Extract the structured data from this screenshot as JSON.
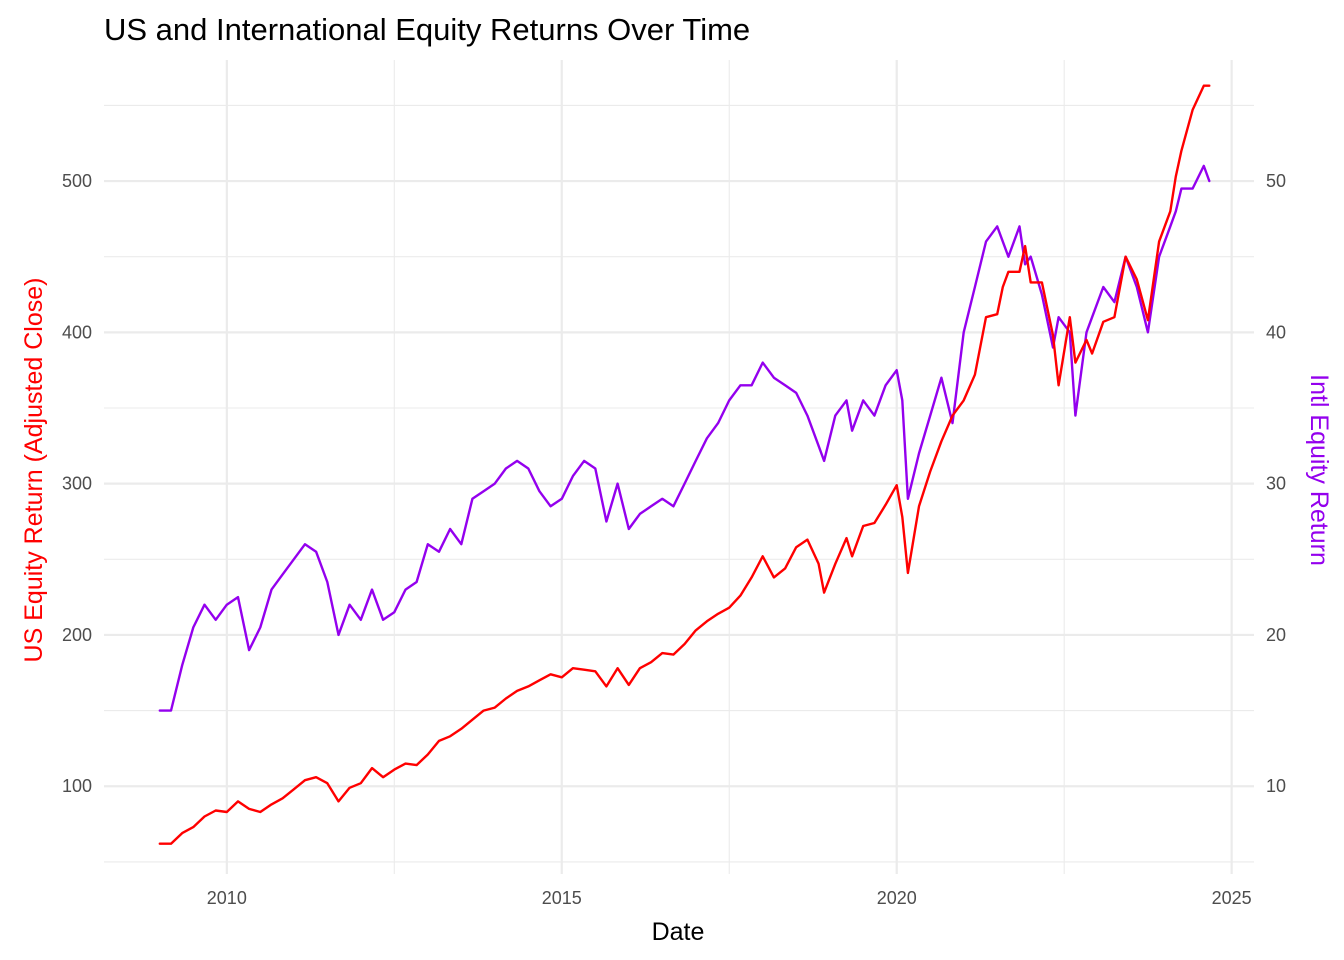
{
  "chart_data": {
    "type": "line",
    "title": "US and International Equity Returns Over Time",
    "xlabel": "Date",
    "ylabel": "US Equity Return (Adjusted Close)",
    "y2label": "Intl Equity Return",
    "xlim": [
      "2008-03-01",
      "2025-05-01"
    ],
    "x_ticks": [
      "2010",
      "2015",
      "2020",
      "2025"
    ],
    "ylim": [
      42,
      580
    ],
    "y_ticks": [
      "100",
      "200",
      "300",
      "400",
      "500"
    ],
    "y2lim": [
      4.2,
      58
    ],
    "y2_ticks": [
      "10",
      "20",
      "30",
      "40",
      "50"
    ],
    "grid": true,
    "colors": {
      "us": "#ff0000",
      "intl": "#9400ee"
    },
    "series": [
      {
        "axis": "left",
        "color": "#ff0000",
        "x": [
          "2009-01",
          "2009-03",
          "2009-05",
          "2009-07",
          "2009-09",
          "2009-11",
          "2010-01",
          "2010-03",
          "2010-05",
          "2010-07",
          "2010-09",
          "2010-11",
          "2011-01",
          "2011-03",
          "2011-05",
          "2011-07",
          "2011-09",
          "2011-11",
          "2012-01",
          "2012-03",
          "2012-05",
          "2012-07",
          "2012-09",
          "2012-11",
          "2013-01",
          "2013-03",
          "2013-05",
          "2013-07",
          "2013-09",
          "2013-11",
          "2014-01",
          "2014-03",
          "2014-05",
          "2014-07",
          "2014-09",
          "2014-11",
          "2015-01",
          "2015-03",
          "2015-05",
          "2015-07",
          "2015-09",
          "2015-11",
          "2016-01",
          "2016-03",
          "2016-05",
          "2016-07",
          "2016-09",
          "2016-11",
          "2017-01",
          "2017-03",
          "2017-05",
          "2017-07",
          "2017-09",
          "2017-11",
          "2018-01",
          "2018-03",
          "2018-05",
          "2018-07",
          "2018-09",
          "2018-11",
          "2018-12",
          "2019-02",
          "2019-04",
          "2019-05",
          "2019-07",
          "2019-09",
          "2019-11",
          "2020-01",
          "2020-02",
          "2020-03",
          "2020-05",
          "2020-07",
          "2020-09",
          "2020-11",
          "2021-01",
          "2021-03",
          "2021-05",
          "2021-07",
          "2021-08",
          "2021-09",
          "2021-11",
          "2021-12",
          "2022-01",
          "2022-03",
          "2022-05",
          "2022-06",
          "2022-08",
          "2022-09",
          "2022-11",
          "2022-12",
          "2023-02",
          "2023-04",
          "2023-06",
          "2023-08",
          "2023-10",
          "2023-12",
          "2024-02",
          "2024-03",
          "2024-04",
          "2024-06",
          "2024-08",
          "2024-09"
        ],
        "values": [
          62,
          62,
          69,
          73,
          80,
          84,
          83,
          90,
          85,
          83,
          88,
          92,
          98,
          104,
          106,
          102,
          90,
          99,
          102,
          112,
          106,
          111,
          115,
          114,
          121,
          130,
          133,
          138,
          144,
          150,
          152,
          158,
          163,
          166,
          170,
          174,
          172,
          178,
          177,
          176,
          166,
          178,
          167,
          178,
          182,
          188,
          187,
          194,
          203,
          209,
          214,
          218,
          226,
          238,
          252,
          238,
          244,
          258,
          263,
          247,
          228,
          247,
          264,
          252,
          272,
          274,
          286,
          299,
          278,
          241,
          285,
          308,
          328,
          345,
          355,
          372,
          410,
          412,
          430,
          440,
          440,
          457,
          433,
          433,
          398,
          365,
          410,
          380,
          395,
          386,
          407,
          410,
          450,
          435,
          408,
          460,
          480,
          503,
          520,
          547,
          563,
          563
        ],
        "name": ""
      },
      {
        "axis": "right",
        "color": "#9400ee",
        "x": [
          "2009-01",
          "2009-03",
          "2009-05",
          "2009-07",
          "2009-09",
          "2009-11",
          "2010-01",
          "2010-03",
          "2010-05",
          "2010-07",
          "2010-09",
          "2010-11",
          "2011-01",
          "2011-03",
          "2011-05",
          "2011-07",
          "2011-09",
          "2011-11",
          "2012-01",
          "2012-03",
          "2012-05",
          "2012-07",
          "2012-09",
          "2012-11",
          "2013-01",
          "2013-03",
          "2013-05",
          "2013-07",
          "2013-09",
          "2013-11",
          "2014-01",
          "2014-03",
          "2014-05",
          "2014-07",
          "2014-09",
          "2014-11",
          "2015-01",
          "2015-03",
          "2015-05",
          "2015-07",
          "2015-09",
          "2015-11",
          "2016-01",
          "2016-03",
          "2016-05",
          "2016-07",
          "2016-09",
          "2016-11",
          "2017-01",
          "2017-03",
          "2017-05",
          "2017-07",
          "2017-09",
          "2017-11",
          "2018-01",
          "2018-03",
          "2018-05",
          "2018-07",
          "2018-09",
          "2018-11",
          "2018-12",
          "2019-02",
          "2019-04",
          "2019-05",
          "2019-07",
          "2019-09",
          "2019-11",
          "2020-01",
          "2020-02",
          "2020-03",
          "2020-05",
          "2020-07",
          "2020-09",
          "2020-11",
          "2021-01",
          "2021-03",
          "2021-05",
          "2021-07",
          "2021-08",
          "2021-09",
          "2021-11",
          "2021-12",
          "2022-01",
          "2022-03",
          "2022-05",
          "2022-06",
          "2022-08",
          "2022-09",
          "2022-11",
          "2022-12",
          "2023-02",
          "2023-04",
          "2023-06",
          "2023-08",
          "2023-10",
          "2023-12",
          "2024-02",
          "2024-03",
          "2024-04",
          "2024-06",
          "2024-08",
          "2024-09"
        ],
        "values": [
          15,
          15,
          18,
          20.5,
          22,
          21,
          22,
          22.5,
          19,
          20.5,
          23,
          24,
          25,
          26,
          25.5,
          23.5,
          20,
          22,
          21,
          23,
          21,
          21.5,
          23,
          23.5,
          26,
          25.5,
          27,
          26,
          29,
          29.5,
          30,
          31,
          31.5,
          31,
          29.5,
          28.5,
          29,
          30.5,
          31.5,
          31,
          27.5,
          30,
          27,
          28,
          28.5,
          29,
          28.5,
          30,
          31.5,
          33,
          34,
          35.5,
          36.5,
          36.5,
          38,
          37,
          36.5,
          36,
          34.5,
          32.5,
          31.5,
          34.5,
          35.5,
          33.5,
          35.5,
          34.5,
          36.5,
          37.5,
          35.5,
          29,
          32,
          34.5,
          37,
          34,
          40,
          43,
          46,
          47,
          46,
          45,
          47,
          44.5,
          45,
          42.5,
          39,
          41,
          40,
          34.5,
          40,
          41,
          43,
          42,
          45,
          43,
          40,
          45,
          47,
          48,
          49.5,
          49.5,
          51,
          50
        ],
        "name": ""
      }
    ]
  }
}
